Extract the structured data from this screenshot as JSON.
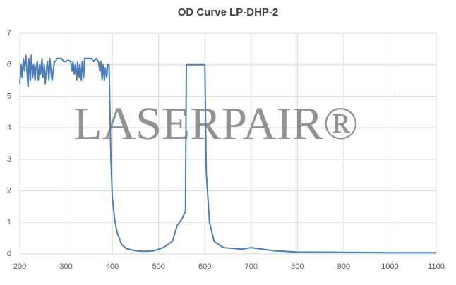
{
  "chart_data": {
    "type": "line",
    "title": "OD Curve LP-DHP-2",
    "watermark": "LASERPAIR®",
    "x": [
      200,
      203,
      205,
      208,
      210,
      213,
      215,
      218,
      220,
      223,
      225,
      228,
      230,
      233,
      235,
      238,
      240,
      243,
      245,
      248,
      250,
      253,
      255,
      258,
      260,
      263,
      265,
      268,
      270,
      273,
      275,
      278,
      280,
      285,
      290,
      295,
      300,
      305,
      310,
      313,
      315,
      318,
      320,
      323,
      325,
      328,
      330,
      333,
      335,
      338,
      340,
      345,
      350,
      355,
      360,
      365,
      370,
      373,
      375,
      378,
      380,
      383,
      385,
      388,
      390,
      393,
      395,
      397,
      400,
      405,
      410,
      420,
      430,
      450,
      470,
      490,
      510,
      530,
      540,
      550,
      558,
      560,
      580,
      600,
      603,
      610,
      620,
      640,
      680,
      700,
      710,
      750,
      800,
      900,
      1000,
      1100
    ],
    "series": [
      {
        "color": "#4a7ebb",
        "values": [
          5.4,
          6.0,
          5.6,
          6.2,
          5.8,
          6.3,
          5.9,
          5.3,
          6.2,
          5.5,
          6.3,
          5.6,
          6.0,
          5.5,
          5.9,
          6.1,
          5.5,
          6.0,
          5.7,
          6.2,
          5.6,
          6.0,
          5.4,
          5.9,
          6.1,
          5.5,
          6.2,
          5.7,
          5.5,
          5.9,
          6.1,
          6.1,
          6.2,
          6.2,
          6.2,
          6.1,
          6.1,
          6.15,
          6.1,
          5.8,
          6.1,
          5.7,
          6.0,
          5.5,
          6.1,
          5.6,
          6.0,
          5.5,
          6.1,
          5.6,
          6.2,
          6.2,
          6.2,
          6.2,
          6.1,
          6.2,
          6.1,
          5.8,
          6.1,
          5.5,
          6.0,
          5.5,
          5.9,
          5.6,
          6.0,
          6.0,
          4.5,
          3.0,
          1.8,
          1.1,
          0.7,
          0.3,
          0.17,
          0.1,
          0.08,
          0.1,
          0.2,
          0.4,
          0.9,
          1.1,
          1.35,
          6.0,
          6.0,
          6.0,
          2.6,
          1.0,
          0.4,
          0.2,
          0.15,
          0.2,
          0.18,
          0.1,
          0.06,
          0.05,
          0.04,
          0.04
        ]
      }
    ],
    "xlim": [
      200,
      1100
    ],
    "xticks": [
      200,
      300,
      400,
      500,
      600,
      700,
      800,
      900,
      1000,
      1100
    ],
    "ylim": [
      0,
      7
    ],
    "yticks": [
      0,
      1,
      2,
      3,
      4,
      5,
      6,
      7
    ],
    "grid": true
  }
}
